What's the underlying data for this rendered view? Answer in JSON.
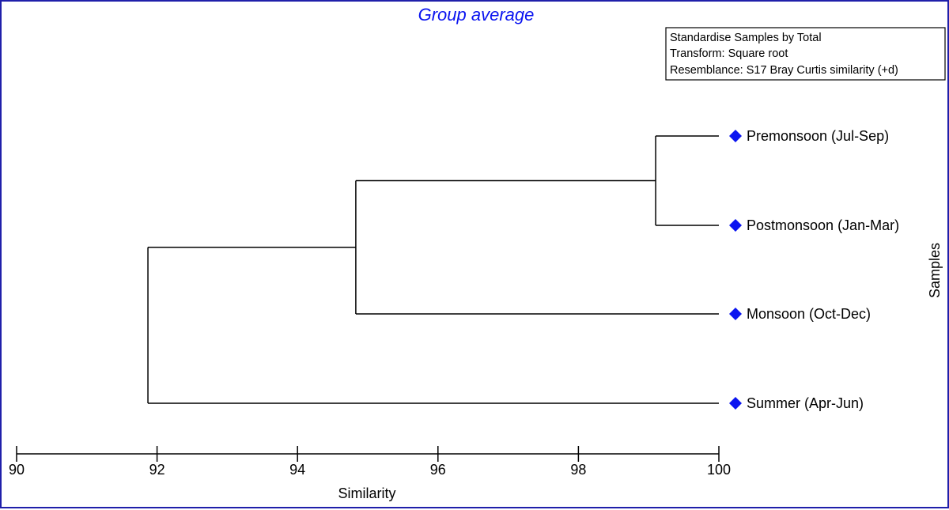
{
  "chart_data": {
    "type": "dendrogram",
    "title": "Group average",
    "xlabel": "Similarity",
    "ylabel": "Samples",
    "xlim": [
      90,
      100
    ],
    "ticks": [
      90,
      92,
      94,
      96,
      98,
      100
    ],
    "leaves": [
      "Premonsoon (Jul-Sep)",
      "Postmonsoon (Jan-Mar)",
      "Monsoon (Oct-Dec)",
      "Summer (Apr-Jun)"
    ],
    "merges": [
      {
        "a": "L0",
        "b": "L1",
        "similarity": 99.1
      },
      {
        "a": "M0",
        "b": "L2",
        "similarity": 94.83
      },
      {
        "a": "M1",
        "b": "L3",
        "similarity": 91.87
      }
    ],
    "legend": [
      "Standardise Samples by Total",
      "Transform: Square root",
      "Resemblance: S17 Bray Curtis similarity (+d)"
    ],
    "colors": {
      "title": "#0a14f0",
      "marker": "#0a14f0",
      "frame": "#1f1faa"
    }
  }
}
